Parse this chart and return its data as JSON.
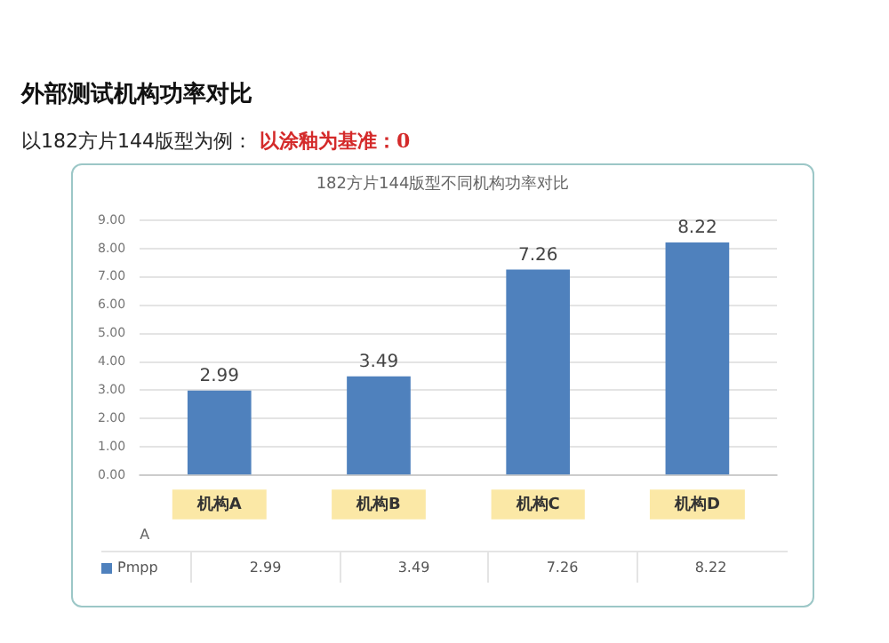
{
  "chart_data": {
    "type": "bar",
    "title": "外部测试机构功率对比",
    "subtitle": "以182方片144版型为例：",
    "annotations": [
      "以涂釉为基准：0",
      "182方片144版型不同机构功率对比",
      "2.99",
      "3.49",
      "7.26",
      "8.22"
    ],
    "categories": [
      "机构A",
      "机构B",
      "机构C",
      "机构D"
    ],
    "xlabel": "A",
    "series": [
      {
        "name": "Pmpp",
        "color": "#4f81bd",
        "values": [
          2.99,
          3.49,
          7.26,
          8.22
        ]
      }
    ],
    "ylim": [
      0,
      9
    ],
    "yticks": [
      {
        "value": 0,
        "label": "0.00"
      },
      {
        "value": 1,
        "label": "1.00"
      },
      {
        "value": 2,
        "label": "2.00"
      },
      {
        "value": 3,
        "label": "3.00"
      },
      {
        "value": 4,
        "label": "4.00"
      },
      {
        "value": 5,
        "label": "5.00"
      },
      {
        "value": 6,
        "label": "6.00"
      },
      {
        "value": 7,
        "label": "7.00"
      },
      {
        "value": 8,
        "label": "8.00"
      },
      {
        "value": 9,
        "label": "9.00"
      }
    ],
    "grid": "y",
    "data_labels": true,
    "legend": "bottom"
  }
}
